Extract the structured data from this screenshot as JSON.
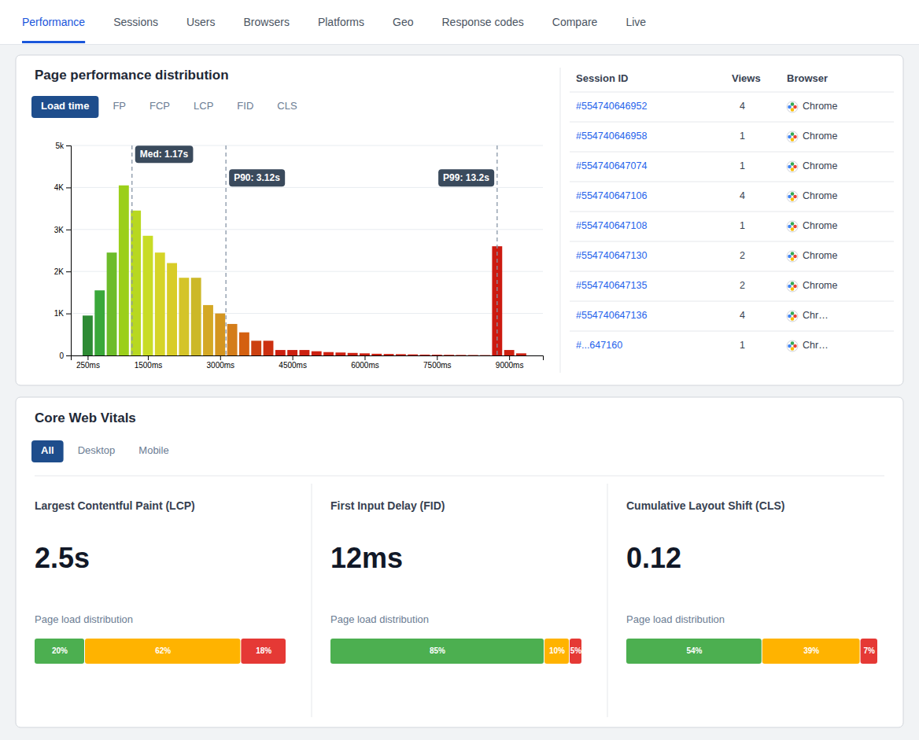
{
  "nav": {
    "tabs": [
      "Performance",
      "Sessions",
      "Users",
      "Browsers",
      "Platforms",
      "Geo",
      "Response codes",
      "Compare",
      "Live"
    ],
    "active": "Performance"
  },
  "chart_data": [
    {
      "type": "bar",
      "title": "Page performance distribution",
      "tabs": [
        "Load time",
        "FP",
        "FCP",
        "LCP",
        "FID",
        "CLS"
      ],
      "active_tab": "Load time",
      "x": [
        250,
        500,
        750,
        1000,
        1250,
        1500,
        1750,
        2000,
        2250,
        2500,
        2750,
        3000,
        3250,
        3500,
        3750,
        4000,
        4250,
        4500,
        4750,
        5000,
        5250,
        5500,
        5750,
        6000,
        6250,
        6500,
        6750,
        7000,
        7250,
        7500,
        7750,
        8000,
        8250,
        8500,
        8750,
        9000,
        9250
      ],
      "values": [
        950,
        1550,
        2450,
        4050,
        3450,
        2850,
        2450,
        2200,
        1850,
        1850,
        1200,
        1000,
        750,
        550,
        350,
        350,
        130,
        130,
        130,
        100,
        80,
        70,
        60,
        50,
        40,
        35,
        30,
        25,
        20,
        18,
        15,
        12,
        10,
        8,
        2600,
        130,
        50
      ],
      "colors": [
        "#2e8b34",
        "#3aa83a",
        "#6dbc2a",
        "#9bcf1a",
        "#b8d820",
        "#c8dc25",
        "#d5d428",
        "#d8cc28",
        "#d4c428",
        "#ccb828",
        "#d4a825",
        "#d49520",
        "#d47d1a",
        "#d46010",
        "#cc4010",
        "#cc3010",
        "#cc2010",
        "#cc2010",
        "#cc2010",
        "#cc2010",
        "#cc2010",
        "#cc2010",
        "#cc2010",
        "#cc2010",
        "#cc2010",
        "#cc2010",
        "#cc2010",
        "#cc2010",
        "#cc2010",
        "#cc2010",
        "#cc2010",
        "#cc2010",
        "#cc2010",
        "#cc2010",
        "#cc1a10",
        "#cc2010",
        "#cc2010"
      ],
      "xlim": [
        -100,
        9700
      ],
      "xticks": [
        {
          "value": 250,
          "label": "250ms"
        },
        {
          "value": 1500,
          "label": "1500ms"
        },
        {
          "value": 3000,
          "label": "3000ms"
        },
        {
          "value": 4500,
          "label": "4500ms"
        },
        {
          "value": 6000,
          "label": "6000ms"
        },
        {
          "value": 7500,
          "label": "7500ms"
        },
        {
          "value": 9000,
          "label": "9000ms"
        }
      ],
      "ylim": [
        0,
        5000
      ],
      "yticks": [
        0,
        {
          "value": 1000,
          "label": "1K"
        },
        {
          "value": 2000,
          "label": "2K"
        },
        {
          "value": 3000,
          "label": "3K"
        },
        {
          "value": 4000,
          "label": "4K"
        },
        {
          "value": 5000,
          "label": "5k"
        }
      ],
      "grid": true,
      "annotations": [
        {
          "x": 1170,
          "text": "Med: 1.17s"
        },
        {
          "x": 3120,
          "text": "P90: 3.12s"
        },
        {
          "x": 8750,
          "text": "P99: 13.2s"
        }
      ]
    },
    {
      "type": "table",
      "columns": [
        "Session ID",
        "Views",
        "Browser"
      ],
      "rows": [
        [
          "#554740646952",
          "4",
          "Chrome"
        ],
        [
          "#554740646958",
          "1",
          "Chrome"
        ],
        [
          "#554740647074",
          "1",
          "Chrome"
        ],
        [
          "#554740647106",
          "4",
          "Chrome"
        ],
        [
          "#554740647108",
          "1",
          "Chrome"
        ],
        [
          "#554740647130",
          "2",
          "Chrome"
        ],
        [
          "#554740647135",
          "2",
          "Chrome"
        ],
        [
          "#554740647136",
          "4",
          "Chr…"
        ],
        [
          "#...647160",
          "1",
          "Chr…"
        ]
      ]
    },
    {
      "type": "bar",
      "orientation": "horizontal",
      "stacked": true,
      "title": "Core Web Vitals",
      "tabs": [
        "All",
        "Desktop",
        "Mobile"
      ],
      "active_tab": "All",
      "categories": [
        "Largest Contentful Paint (LCP)",
        "First Input Delay (FID)",
        "Cumulative Layout Shift (CLS)"
      ],
      "annotations": [
        "2.5s",
        "12ms",
        "0.12"
      ],
      "xlabel": "Page load distribution",
      "xlim": [
        0,
        100
      ],
      "tick_labels": false,
      "data_labels": true,
      "series": [
        {
          "color": "#4caf50",
          "values": [
            20,
            85,
            54
          ],
          "value_labels": [
            "20%",
            "85%",
            "54%"
          ]
        },
        {
          "color": "#ffb300",
          "values": [
            62,
            10,
            39
          ],
          "value_labels": [
            "62%",
            "10%",
            "39%"
          ]
        },
        {
          "color": "#e53935",
          "values": [
            18,
            5,
            7
          ],
          "value_labels": [
            "18%",
            "5%",
            "7%"
          ]
        }
      ]
    }
  ]
}
